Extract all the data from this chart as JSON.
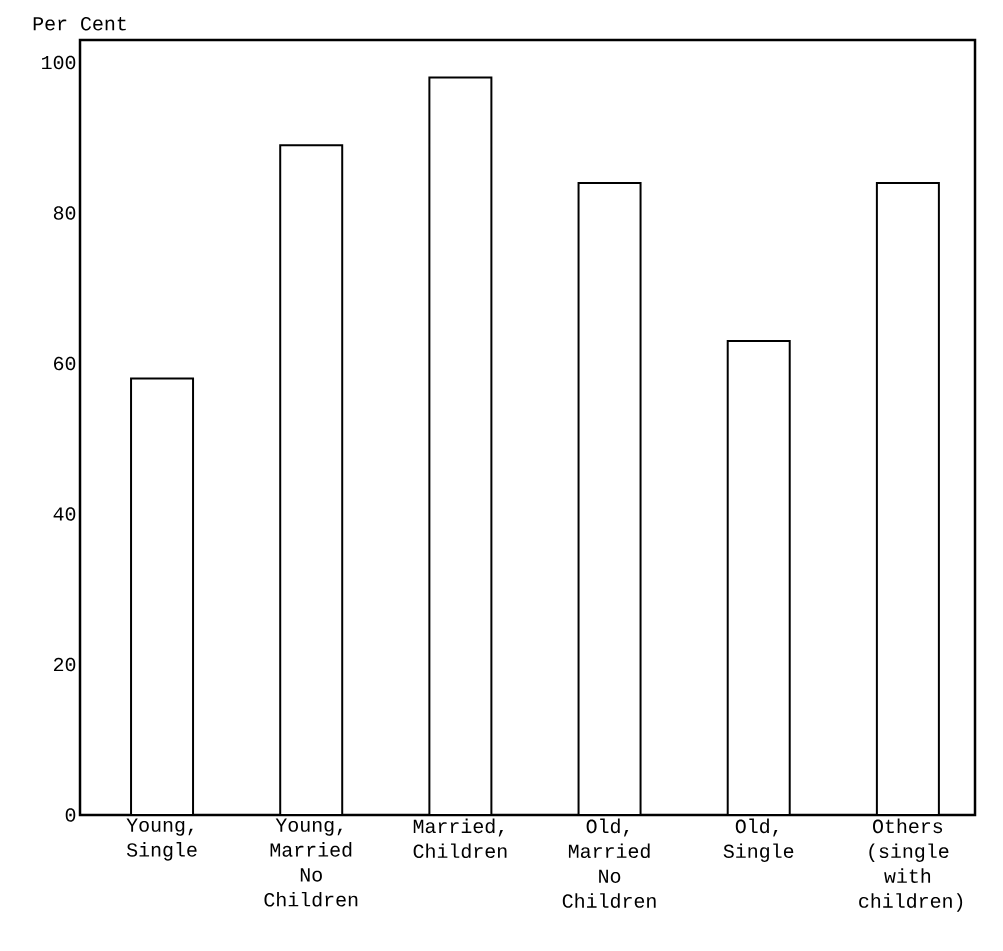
{
  "chart_data": {
    "type": "bar",
    "ylabel": "Per Cent",
    "categories": [
      "Young, Single",
      "Young, Married No Children",
      "Married, Children",
      "Old, Married No Children",
      "Old, Single",
      "Others (single with children)"
    ],
    "values": [
      58,
      89,
      98,
      84,
      63,
      84
    ],
    "color": "#ffffff",
    "ylim": [
      0,
      103
    ],
    "yticks": [
      0,
      20,
      40,
      60,
      80,
      100
    ],
    "grid": false
  }
}
